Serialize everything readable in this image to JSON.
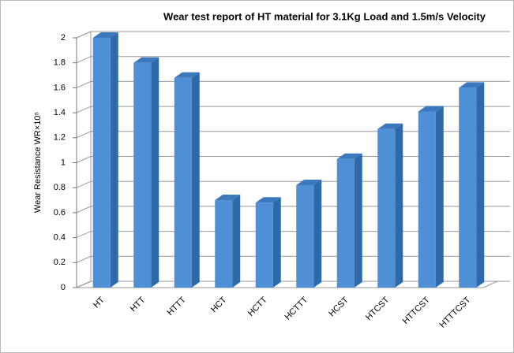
{
  "chart_data": {
    "type": "bar3d",
    "title": "Wear test report of HT material for 3.1Kg Load and 1.5m/s Velocity",
    "y_label": "Wear Resistance WR×10⁵",
    "categories": [
      "HT",
      "HTT",
      "HTTT",
      "HCT",
      "HCTT",
      "HCTTT",
      "HCST",
      "HTCST",
      "HTTCST",
      "HTTTCST"
    ],
    "values": [
      2.0,
      1.8,
      1.68,
      0.7,
      0.68,
      0.82,
      1.03,
      1.27,
      1.41,
      1.6
    ],
    "color": "#4f8fd6",
    "ylim": [
      0,
      2
    ],
    "yticks": [
      0,
      0.2,
      0.4,
      0.6,
      0.8,
      1,
      1.2,
      1.4,
      1.6,
      1.8,
      2
    ],
    "grid": true
  }
}
